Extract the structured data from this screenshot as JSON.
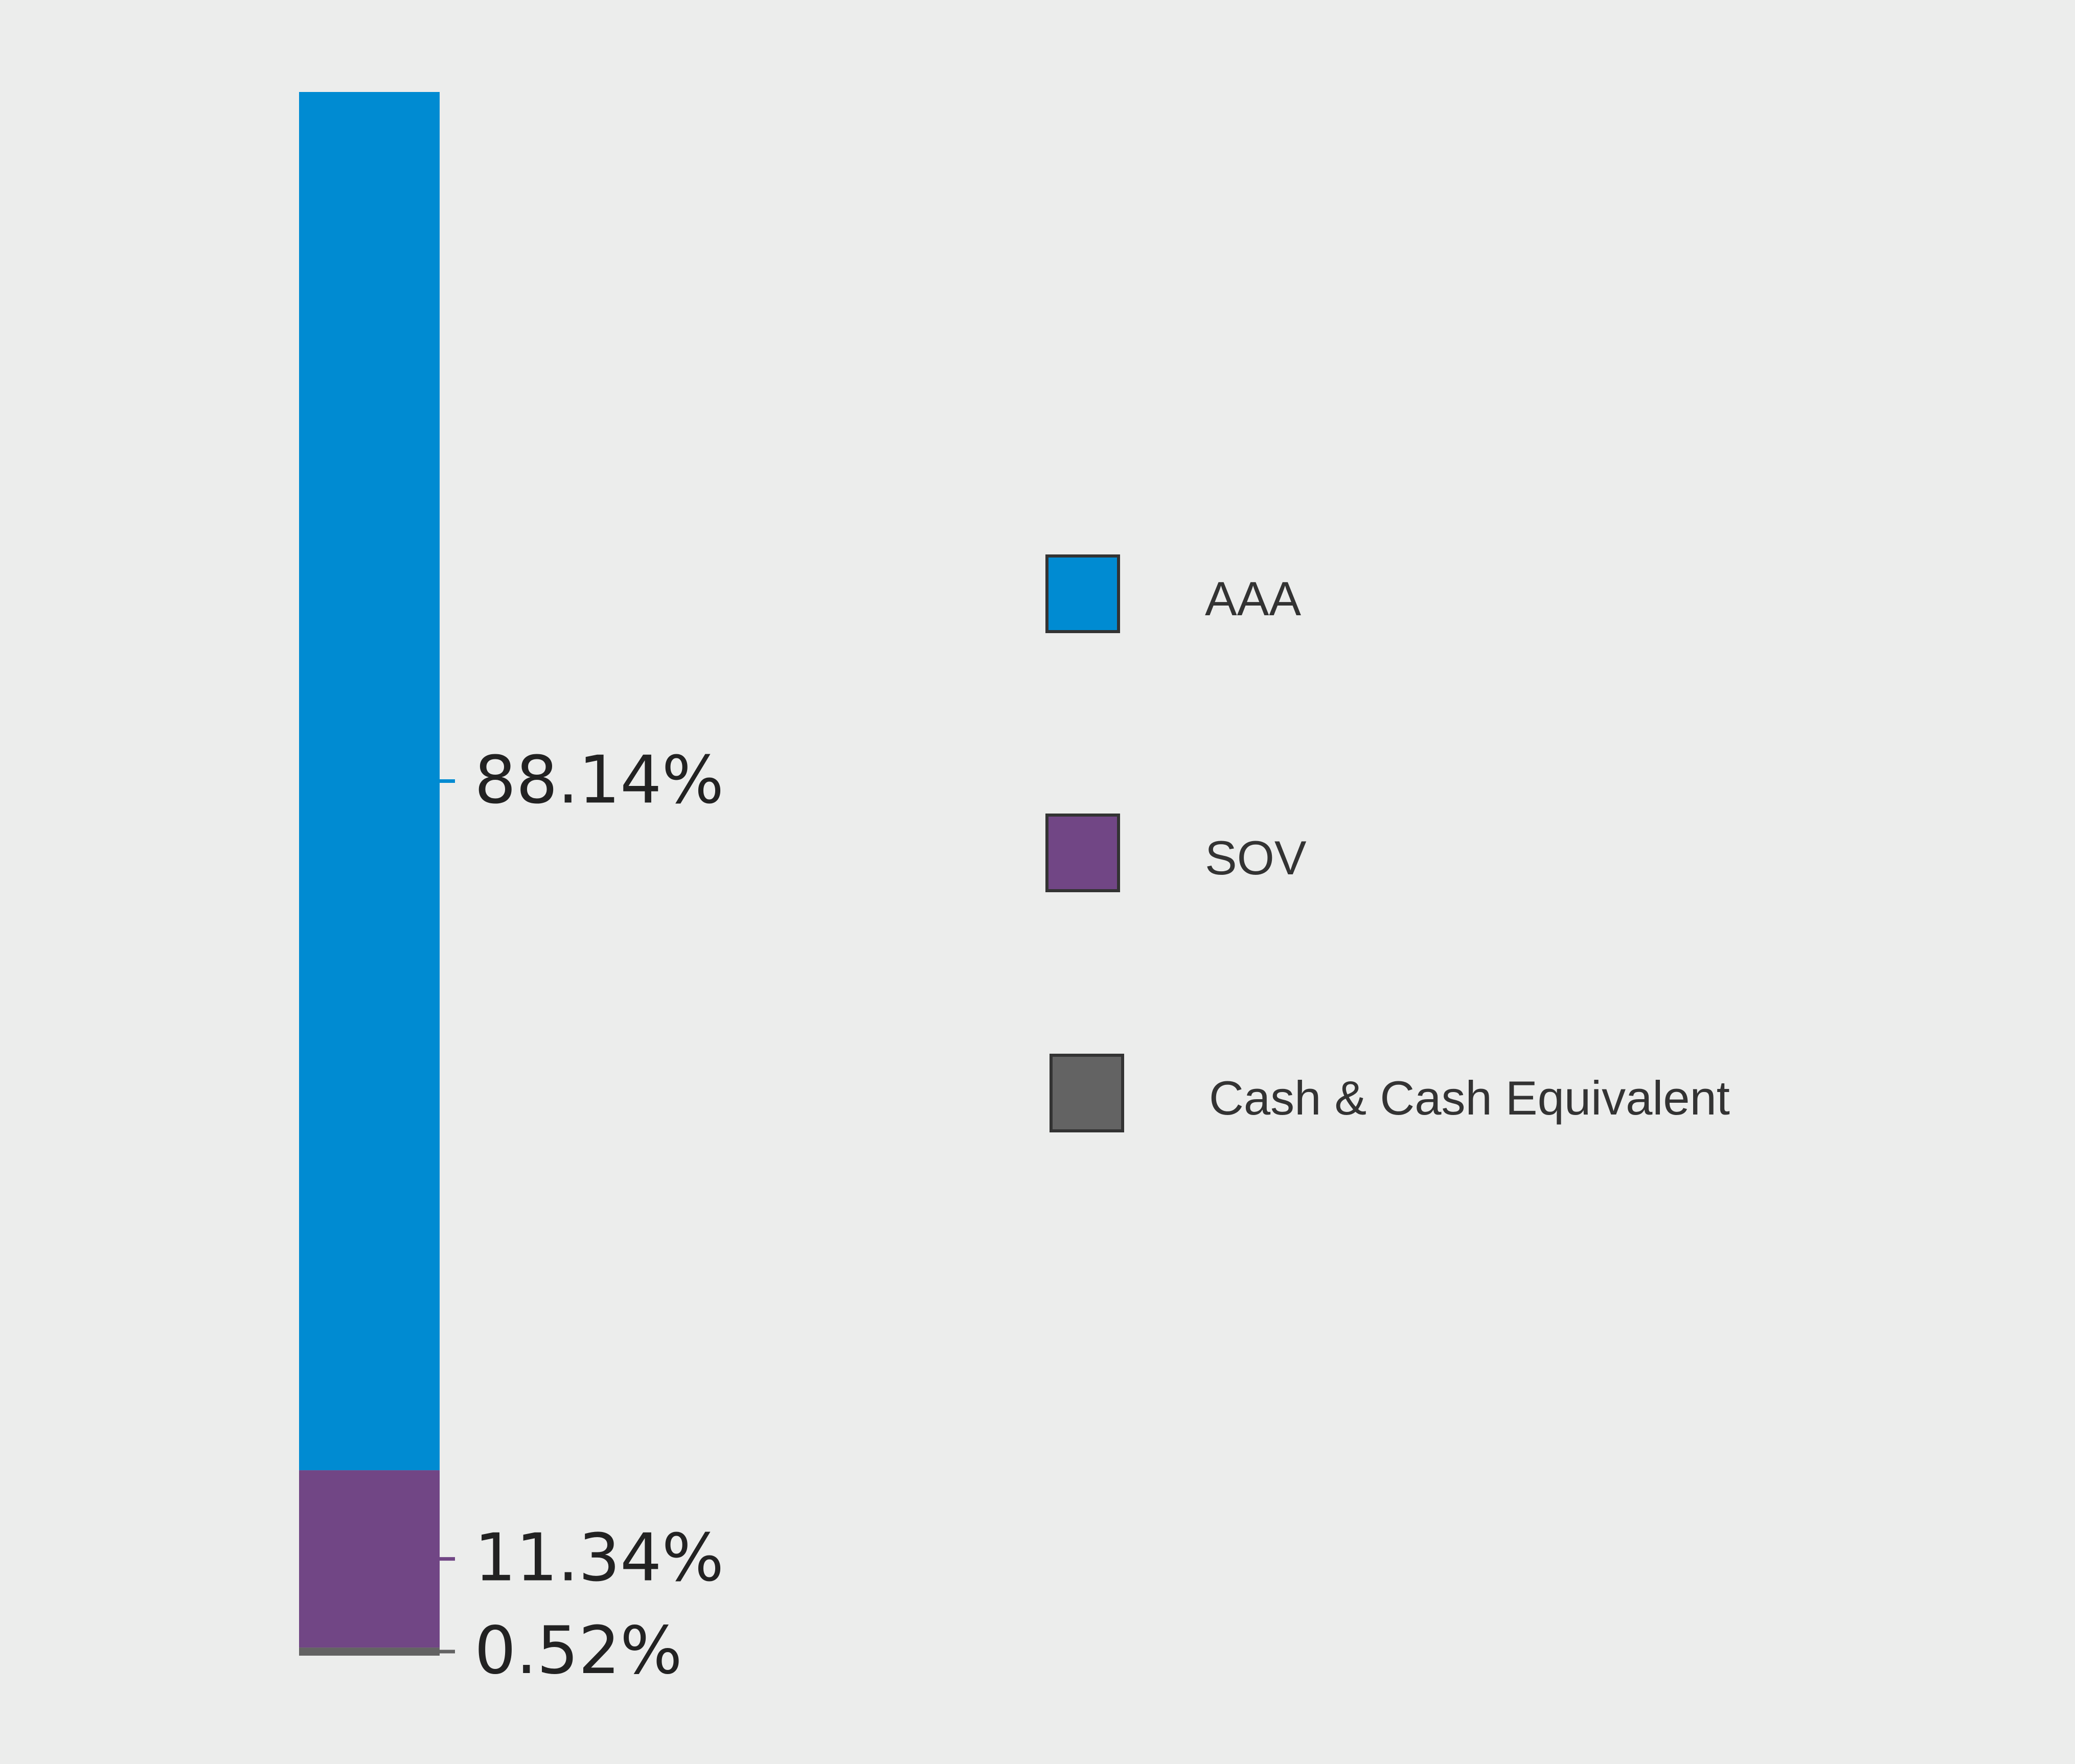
{
  "chart_data": {
    "type": "bar",
    "stacked": true,
    "orientation": "vertical",
    "unit": "%",
    "series": [
      {
        "name": "AAA",
        "value": 88.14,
        "label": "88.14%",
        "color": "#008bd2"
      },
      {
        "name": "SOV",
        "value": 11.34,
        "label": "11.34%",
        "color": "#714685"
      },
      {
        "name": "Cash & Cash Equivalent",
        "value": 0.52,
        "label": "0.52%",
        "color": "#636363"
      }
    ],
    "legend_position": "right",
    "grid": false
  },
  "colors": {
    "background": "#ecedec",
    "text": "#333333",
    "label_text": "#222222"
  }
}
